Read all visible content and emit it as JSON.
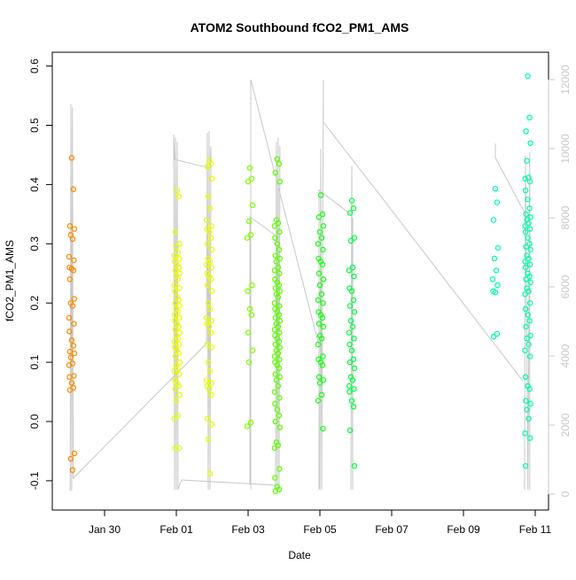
{
  "chart_data": {
    "type": "scatter",
    "title": "ATOM2 Southbound fCO2_PM1_AMS",
    "xlabel": "Date",
    "ylabel": "fCO2_PM1_AMS",
    "ylim": [
      -0.13,
      0.61
    ],
    "yticks": [
      "-0.1",
      "0.0",
      "0.1",
      "0.2",
      "0.3",
      "0.4",
      "0.5",
      "0.6"
    ],
    "y2lim": [
      0,
      12500
    ],
    "y2ticks": [
      "0",
      "2000",
      "4000",
      "6000",
      "8000",
      "10000",
      "12000"
    ],
    "y2_color": "#c8c8c8",
    "xticks": [
      "Jan 30",
      "Feb 01",
      "Feb 03",
      "Feb 05",
      "Feb 07",
      "Feb 09",
      "Feb 11"
    ],
    "grid": false,
    "legend": "none",
    "clusters": [
      {
        "x": "Jan 29 02:00",
        "color": "#ff8c00",
        "values": [
          0.445,
          0.392,
          0.33,
          0.325,
          0.315,
          0.308,
          0.278,
          0.272,
          0.26,
          0.258,
          0.255,
          0.24,
          0.207,
          0.2,
          0.195,
          0.175,
          0.165,
          0.152,
          0.137,
          0.128,
          0.118,
          0.115,
          0.108,
          0.098,
          0.095,
          0.077,
          0.075,
          0.065,
          0.057,
          0.053,
          -0.054,
          -0.063,
          -0.082
        ]
      },
      {
        "x": "Feb 01 00:30",
        "color": "#e8ff00",
        "values": [
          0.39,
          0.38,
          0.32,
          0.3,
          0.295,
          0.285,
          0.28,
          0.275,
          0.27,
          0.265,
          0.26,
          0.255,
          0.25,
          0.245,
          0.24,
          0.23,
          0.225,
          0.22,
          0.21,
          0.205,
          0.2,
          0.195,
          0.19,
          0.185,
          0.18,
          0.175,
          0.17,
          0.165,
          0.16,
          0.155,
          0.15,
          0.145,
          0.14,
          0.135,
          0.13,
          0.125,
          0.12,
          0.115,
          0.11,
          0.1,
          0.095,
          0.09,
          0.085,
          0.08,
          0.07,
          0.065,
          0.06,
          0.055,
          0.045,
          0.035,
          0.01,
          0.005,
          -0.045,
          -0.045
        ]
      },
      {
        "x": "Feb 01 22:00",
        "color": "#e8ff00",
        "values": [
          0.44,
          0.435,
          0.43,
          0.41,
          0.38,
          0.36,
          0.34,
          0.33,
          0.325,
          0.32,
          0.31,
          0.3,
          0.29,
          0.275,
          0.27,
          0.265,
          0.26,
          0.25,
          0.245,
          0.24,
          0.23,
          0.22,
          0.2,
          0.19,
          0.175,
          0.17,
          0.165,
          0.16,
          0.15,
          0.13,
          0.125,
          0.1,
          0.085,
          0.07,
          0.065,
          0.06,
          0.055,
          0.045,
          0.005,
          -0.005,
          -0.03,
          -0.088
        ]
      },
      {
        "x": "Feb 03 01:10",
        "color": "#80ff00",
        "values": [
          0.428,
          0.41,
          0.405,
          0.365,
          0.338,
          0.315,
          0.31,
          0.23,
          0.22,
          0.19,
          0.18,
          0.15,
          0.12,
          0.1,
          -0.002,
          -0.008
        ]
      },
      {
        "x": "Feb 03 19:30",
        "color": "#5cff00",
        "values": [
          0.443,
          0.435,
          0.42,
          0.405,
          0.34,
          0.335,
          0.33,
          0.32,
          0.31,
          0.3,
          0.29,
          0.28,
          0.275,
          0.27,
          0.26,
          0.255,
          0.25,
          0.24,
          0.235,
          0.23,
          0.225,
          0.22,
          0.215,
          0.21,
          0.2,
          0.195,
          0.19,
          0.185,
          0.18,
          0.175,
          0.17,
          0.165,
          0.16,
          0.155,
          0.15,
          0.145,
          0.14,
          0.135,
          0.13,
          0.125,
          0.12,
          0.115,
          0.11,
          0.105,
          0.1,
          0.095,
          0.09,
          0.08,
          0.075,
          0.07,
          0.06,
          0.05,
          0.04,
          0.03,
          0.02,
          0.01,
          0.0,
          -0.01,
          -0.035,
          -0.04,
          -0.045,
          -0.08,
          -0.095,
          -0.11,
          -0.115,
          -0.118
        ]
      },
      {
        "x": "Feb 05 00:35",
        "color": "#1aff1a",
        "values": [
          0.382,
          0.35,
          0.345,
          0.33,
          0.32,
          0.31,
          0.3,
          0.29,
          0.275,
          0.27,
          0.265,
          0.25,
          0.24,
          0.23,
          0.215,
          0.205,
          0.2,
          0.185,
          0.18,
          0.175,
          0.165,
          0.16,
          0.145,
          0.14,
          0.13,
          0.11,
          0.105,
          0.1,
          0.095,
          0.075,
          0.07,
          0.065,
          0.045,
          0.035,
          -0.012
        ]
      },
      {
        "x": "Feb 05 21:20",
        "color": "#00ff40",
        "values": [
          0.373,
          0.36,
          0.352,
          0.31,
          0.305,
          0.26,
          0.255,
          0.245,
          0.225,
          0.22,
          0.205,
          0.195,
          0.185,
          0.17,
          0.16,
          0.15,
          0.14,
          0.13,
          0.12,
          0.105,
          0.1,
          0.09,
          0.075,
          0.07,
          0.06,
          0.055,
          0.05,
          0.035,
          0.025,
          -0.015,
          -0.075
        ]
      },
      {
        "x": "Feb 09 21:20",
        "color": "#00ffa0",
        "values": [
          0.393,
          0.37,
          0.34,
          0.293,
          0.275,
          0.255,
          0.24,
          0.23,
          0.22,
          0.218,
          0.148,
          0.143
        ]
      },
      {
        "x": "Feb 10 19:00",
        "color": "#00ffa8",
        "values": [
          0.583,
          0.513,
          0.49,
          0.47,
          0.44,
          0.412,
          0.41,
          0.405,
          0.39,
          0.375,
          0.36,
          0.35,
          0.345,
          0.34,
          0.335,
          0.33,
          0.325,
          0.32,
          0.31,
          0.3,
          0.295,
          0.29,
          0.28,
          0.275,
          0.27,
          0.265,
          0.26,
          0.25,
          0.245,
          0.24,
          0.235,
          0.225,
          0.22,
          0.215,
          0.2,
          0.19,
          0.18,
          0.17,
          0.16,
          0.145,
          0.14,
          0.13,
          0.12,
          0.11,
          0.075,
          0.06,
          0.055,
          0.035,
          0.03,
          0.02,
          0.005,
          -0.02,
          -0.028,
          -0.075
        ]
      }
    ],
    "secondary_line": [
      [
        [
          "Jan 29 01:00",
          100
        ],
        [
          "Jan 29 01:30",
          11300
        ],
        [
          "Jan 29 02:00",
          100
        ],
        [
          "Jan 29 02:30",
          11200
        ],
        [
          "Jan 29 03:00",
          460
        ],
        [
          "Feb 01 20:10",
          4360
        ],
        [
          "Feb 01 20:45",
          10460
        ],
        [
          "Feb 01 21:20",
          130
        ],
        [
          "Feb 01 21:55",
          10510
        ],
        [
          "Feb 01 22:30",
          130
        ],
        [
          "Feb 01 23:05",
          10080
        ],
        [
          "Feb 01 22:30",
          9440
        ],
        [
          "Jan 31 22:50",
          9690
        ],
        [
          "Jan 31 22:15",
          10410
        ],
        [
          "Jan 31 22:50",
          130
        ],
        [
          "Jan 31 23:25",
          10330
        ],
        [
          "Feb 01 00:00",
          130
        ],
        [
          "Feb 01 00:35",
          10200
        ],
        [
          "Feb 01 01:10",
          130
        ],
        [
          "Feb 01 03:30",
          410
        ],
        [
          "Feb 03 17:45",
          260
        ],
        [
          "Feb 03 18:20",
          130
        ],
        [
          "Feb 03 18:55",
          10200
        ],
        [
          "Feb 03 19:30",
          130
        ],
        [
          "Feb 03 20:05",
          10330
        ],
        [
          "Feb 03 20:40",
          130
        ],
        [
          "Feb 03 21:15",
          10080
        ]
      ],
      [
        [
          "Feb 03 01:10",
          300
        ],
        [
          "Feb 03 01:10",
          8030
        ],
        [
          "Feb 03 17:45",
          7510
        ]
      ],
      [
        [
          "Feb 03 01:45",
          130
        ],
        [
          "Feb 03 01:45",
          12000
        ],
        [
          "Feb 04 23:25",
          4300
        ]
      ],
      [
        [
          "Feb 04 23:25",
          130
        ],
        [
          "Feb 04 23:25",
          8800
        ],
        [
          "Feb 05 21:20",
          8080
        ]
      ],
      [
        [
          "Feb 05 00:00",
          130
        ],
        [
          "Feb 05 00:35",
          10000
        ],
        [
          "Feb 05 01:10",
          130
        ],
        [
          "Feb 05 02:20",
          12000
        ],
        [
          "Feb 05 02:20",
          10770
        ],
        [
          "Feb 06 16:50",
          8620
        ],
        [
          "Feb 10 15:40",
          3280
        ]
      ],
      [
        [
          "Feb 05 20:45",
          130
        ],
        [
          "Feb 05 21:20",
          9500
        ],
        [
          "Feb 05 21:55",
          130
        ],
        [
          "Feb 05 21:55",
          8000
        ]
      ],
      [
        [
          "Feb 09 21:20",
          10150
        ],
        [
          "Feb 09 21:20",
          9740
        ],
        [
          "Feb 10 16:50",
          8150
        ]
      ],
      [
        [
          "Feb 10 16:50",
          130
        ],
        [
          "Feb 10 17:25",
          9800
        ],
        [
          "Feb 10 19:10",
          130
        ],
        [
          "Feb 10 20:20",
          9900
        ],
        [
          "Feb 10 20:20",
          130
        ]
      ]
    ]
  }
}
